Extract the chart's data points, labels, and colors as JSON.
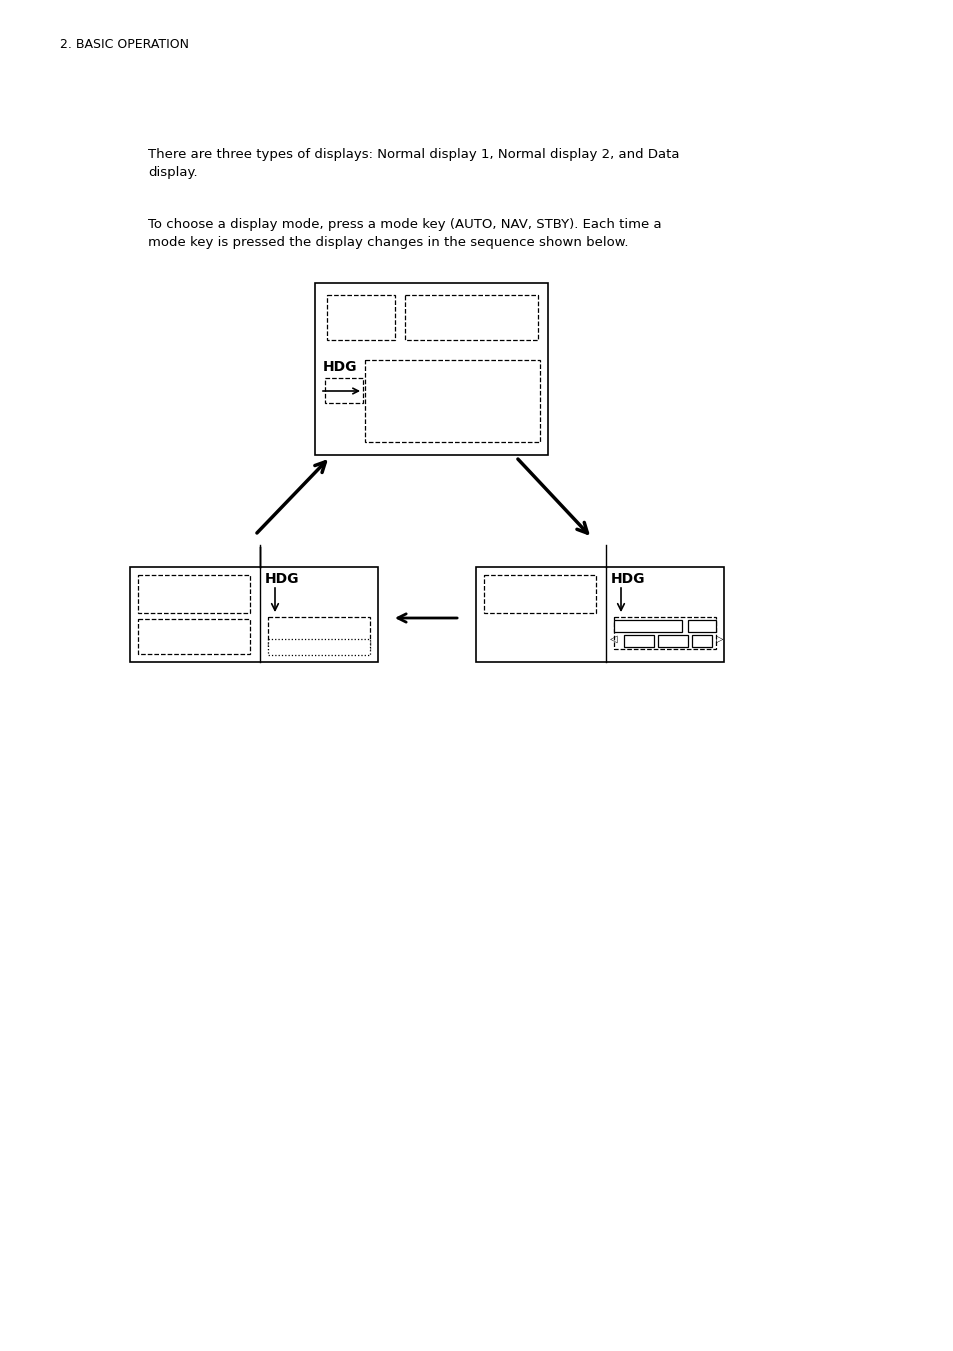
{
  "title_text": "2. BASIC OPERATION",
  "para1": "There are three types of displays: Normal display 1, Normal display 2, and Data\ndisplay.",
  "para2": "To choose a display mode, press a mode key (AUTO, NAV, STBY). Each time a\nmode key is pressed the display changes in the sequence shown below.",
  "bg_color": "#ffffff",
  "text_color": "#000000",
  "hdg_label": "HDG"
}
